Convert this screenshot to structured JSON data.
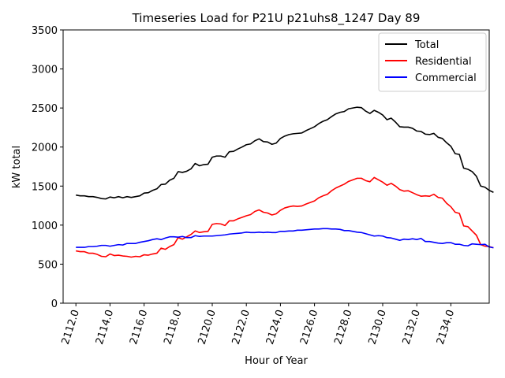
{
  "chart_data": {
    "type": "line",
    "title": "Timeseries Load for P21U p21uhs8_1247  Day 89",
    "xlabel": "Hour of Year",
    "ylabel": "kW total",
    "xlim": [
      2111.25,
      2136.25
    ],
    "ylim": [
      0,
      3500
    ],
    "xticks": [
      2112,
      2114,
      2116,
      2118,
      2120,
      2122,
      2124,
      2126,
      2128,
      2130,
      2132,
      2134
    ],
    "xtick_labels": [
      "2112.0",
      "2114.0",
      "2116.0",
      "2118.0",
      "2120.0",
      "2122.0",
      "2124.0",
      "2126.0",
      "2128.0",
      "2130.0",
      "2132.0",
      "2134.0"
    ],
    "yticks": [
      0,
      500,
      1000,
      1500,
      2000,
      2500,
      3000,
      3500
    ],
    "ytick_labels": [
      "0",
      "500",
      "1000",
      "1500",
      "2000",
      "2500",
      "3000",
      "3500"
    ],
    "legend_position": "top-right",
    "grid": false,
    "x_start": 2112.0,
    "x_step": 0.25,
    "series": [
      {
        "name": "Total",
        "color": "#000000",
        "values": [
          1385,
          1375,
          1375,
          1365,
          1365,
          1355,
          1340,
          1335,
          1360,
          1350,
          1365,
          1350,
          1365,
          1355,
          1365,
          1375,
          1410,
          1415,
          1445,
          1465,
          1520,
          1525,
          1575,
          1600,
          1685,
          1675,
          1690,
          1720,
          1790,
          1760,
          1775,
          1780,
          1870,
          1885,
          1885,
          1870,
          1940,
          1945,
          1975,
          2000,
          2030,
          2040,
          2080,
          2105,
          2070,
          2065,
          2035,
          2050,
          2110,
          2140,
          2160,
          2170,
          2175,
          2180,
          2210,
          2235,
          2260,
          2300,
          2330,
          2350,
          2390,
          2425,
          2445,
          2455,
          2490,
          2500,
          2510,
          2505,
          2460,
          2430,
          2470,
          2445,
          2410,
          2350,
          2370,
          2320,
          2260,
          2255,
          2255,
          2240,
          2205,
          2200,
          2165,
          2160,
          2175,
          2125,
          2110,
          2055,
          2010,
          1915,
          1905,
          1730,
          1715,
          1685,
          1625,
          1500,
          1485,
          1445,
          1420
        ]
      },
      {
        "name": "Residential",
        "color": "#ff0000",
        "values": [
          670,
          660,
          660,
          640,
          640,
          625,
          600,
          595,
          630,
          610,
          615,
          605,
          600,
          590,
          600,
          595,
          620,
          615,
          630,
          640,
          705,
          690,
          725,
          750,
          840,
          820,
          850,
          880,
          925,
          905,
          915,
          920,
          1010,
          1020,
          1015,
          995,
          1055,
          1055,
          1080,
          1100,
          1120,
          1135,
          1175,
          1195,
          1165,
          1155,
          1130,
          1145,
          1190,
          1220,
          1235,
          1245,
          1240,
          1245,
          1270,
          1290,
          1310,
          1350,
          1375,
          1395,
          1440,
          1475,
          1500,
          1525,
          1560,
          1580,
          1600,
          1600,
          1570,
          1555,
          1610,
          1580,
          1550,
          1510,
          1535,
          1500,
          1455,
          1435,
          1440,
          1415,
          1390,
          1370,
          1375,
          1370,
          1395,
          1355,
          1345,
          1280,
          1235,
          1165,
          1150,
          990,
          980,
          925,
          870,
          750,
          730,
          725,
          710
        ]
      },
      {
        "name": "Commercial",
        "color": "#0000ff",
        "values": [
          715,
          715,
          715,
          725,
          725,
          730,
          740,
          740,
          730,
          740,
          750,
          745,
          765,
          765,
          765,
          780,
          790,
          800,
          815,
          825,
          815,
          835,
          850,
          850,
          845,
          855,
          840,
          840,
          865,
          855,
          860,
          860,
          860,
          865,
          870,
          875,
          885,
          890,
          895,
          900,
          910,
          905,
          905,
          910,
          905,
          910,
          905,
          905,
          920,
          920,
          925,
          925,
          935,
          935,
          940,
          945,
          950,
          950,
          955,
          955,
          950,
          950,
          945,
          930,
          930,
          920,
          910,
          905,
          890,
          875,
          860,
          865,
          860,
          840,
          835,
          820,
          805,
          820,
          815,
          825,
          815,
          830,
          790,
          790,
          780,
          770,
          765,
          775,
          775,
          755,
          755,
          740,
          735,
          760,
          755,
          750,
          755,
          720,
          710
        ]
      }
    ]
  }
}
